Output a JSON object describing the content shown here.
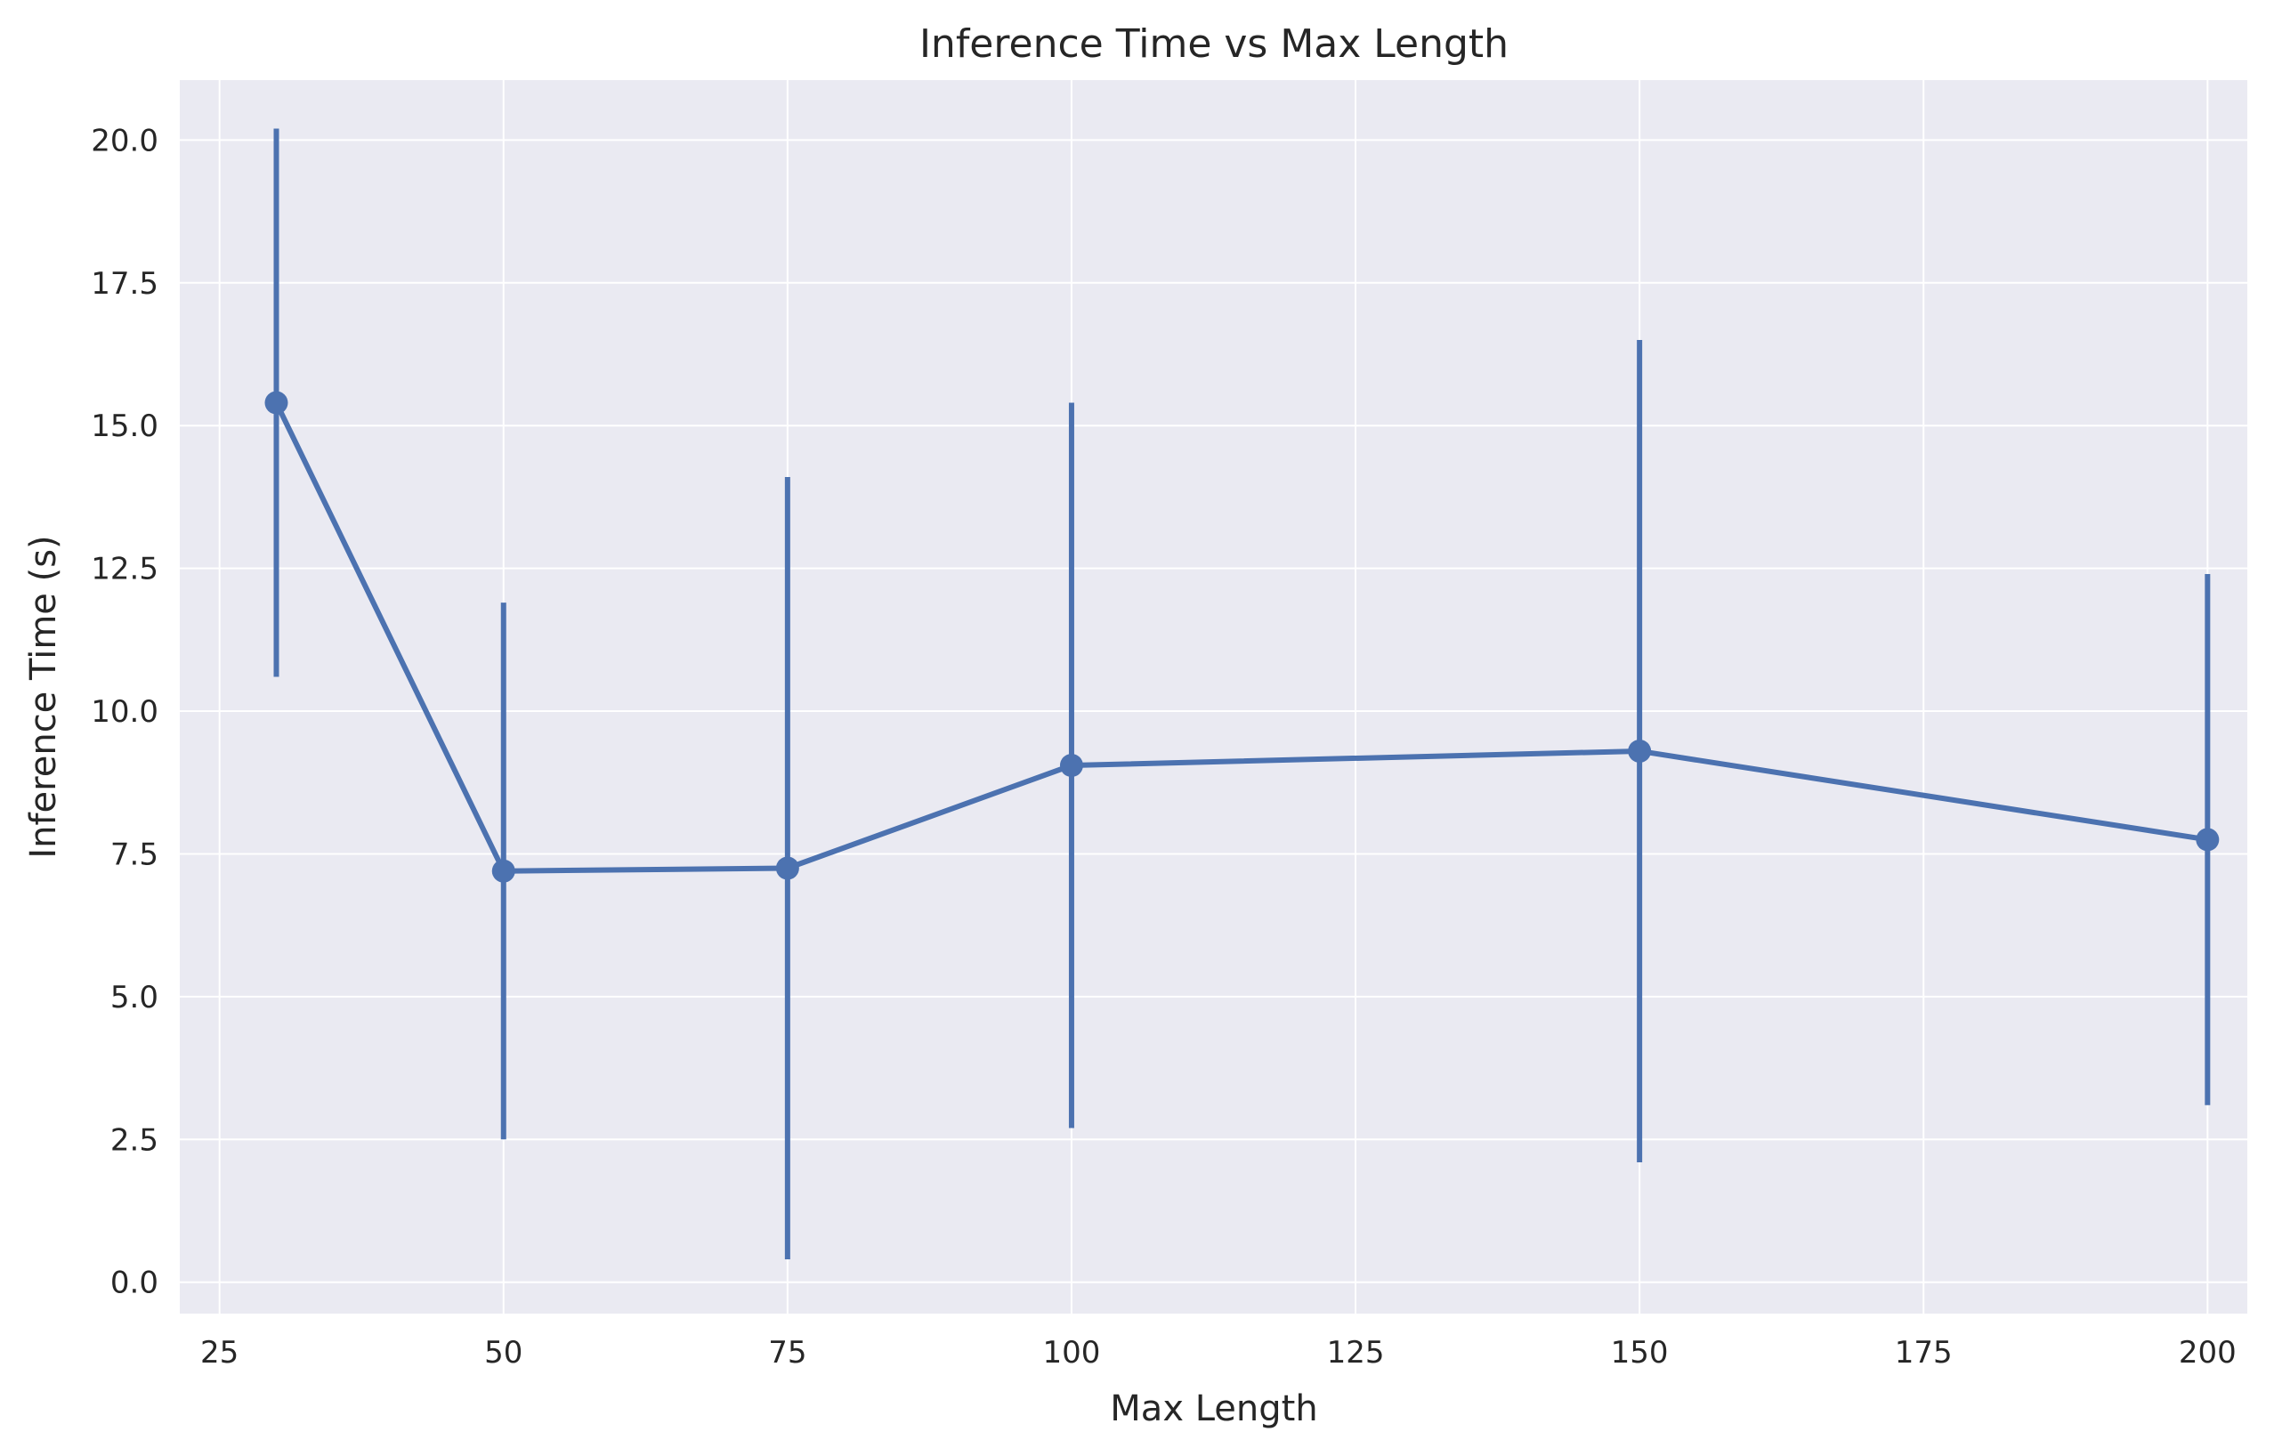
{
  "chart_data": {
    "type": "line",
    "title": "Inference Time vs Max Length",
    "xlabel": "Max Length",
    "ylabel": "Inference Time (s)",
    "xlim": [
      21.5,
      203.5
    ],
    "ylim": [
      -0.55,
      21.05
    ],
    "xticks": [
      25,
      50,
      75,
      100,
      125,
      150,
      175,
      200
    ],
    "xtick_labels": [
      "25",
      "50",
      "75",
      "100",
      "125",
      "150",
      "175",
      "200"
    ],
    "yticks": [
      0,
      2.5,
      5,
      7.5,
      10,
      12.5,
      15,
      17.5,
      20
    ],
    "ytick_labels": [
      "0.0",
      "2.5",
      "5.0",
      "7.5",
      "10.0",
      "12.5",
      "15.0",
      "17.5",
      "20.0"
    ],
    "grid": true,
    "series": [
      {
        "x": [
          30,
          50,
          75,
          100,
          150,
          200
        ],
        "y": [
          15.4,
          7.2,
          7.25,
          9.05,
          9.3,
          7.75
        ],
        "y_lower": [
          10.6,
          2.5,
          0.4,
          2.7,
          2.1,
          3.1
        ],
        "y_upper": [
          20.2,
          11.9,
          14.1,
          15.4,
          16.5,
          12.4
        ],
        "error_bars": true,
        "marker": "circle"
      }
    ],
    "colors": {
      "series": "#4C72B0",
      "plot_background": "#EAEAF2",
      "grid": "#FFFFFF"
    }
  }
}
